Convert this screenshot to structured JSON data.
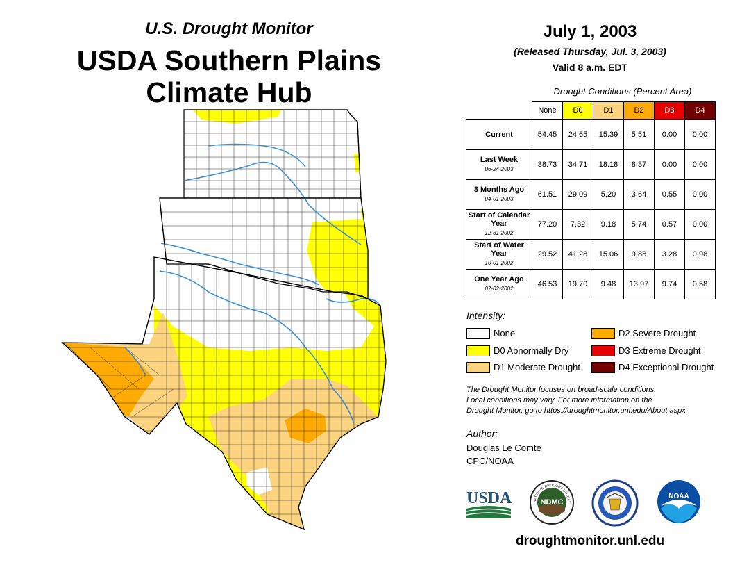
{
  "header": {
    "subtitle": "U.S. Drought Monitor",
    "title_line1": "USDA Southern Plains",
    "title_line2": "Climate Hub"
  },
  "map": {
    "regions": [
      "Kansas",
      "Oklahoma",
      "Texas"
    ]
  },
  "date_block": {
    "date": "July 1, 2003",
    "released": "(Released Thursday, Jul. 3, 2003)",
    "valid": "Valid 8 a.m. EDT"
  },
  "table": {
    "title": "Drought Conditions (Percent Area)",
    "columns": [
      {
        "label": "None",
        "color": "#ffffff",
        "text_color": "#000000"
      },
      {
        "label": "D0",
        "color": "#ffff00",
        "text_color": "#000000"
      },
      {
        "label": "D1",
        "color": "#fcd37f",
        "text_color": "#000000"
      },
      {
        "label": "D2",
        "color": "#ffaa00",
        "text_color": "#000000"
      },
      {
        "label": "D3",
        "color": "#e60000",
        "text_color": "#ffffff"
      },
      {
        "label": "D4",
        "color": "#730000",
        "text_color": "#ffffff"
      }
    ],
    "rows": [
      {
        "label": "Current",
        "date": "",
        "values": [
          "54.45",
          "24.65",
          "15.39",
          "5.51",
          "0.00",
          "0.00"
        ]
      },
      {
        "label": "Last Week",
        "date": "06-24-2003",
        "values": [
          "38.73",
          "34.71",
          "18.18",
          "8.37",
          "0.00",
          "0.00"
        ]
      },
      {
        "label": "3 Months Ago",
        "date": "04-01-2003",
        "values": [
          "61.51",
          "29.09",
          "5.20",
          "3.64",
          "0.55",
          "0.00"
        ]
      },
      {
        "label": "Start of Calendar Year",
        "date": "12-31-2002",
        "values": [
          "77.20",
          "7.32",
          "9.18",
          "5.74",
          "0.57",
          "0.00"
        ]
      },
      {
        "label": "Start of Water Year",
        "date": "10-01-2002",
        "values": [
          "29.52",
          "41.28",
          "15.06",
          "9.88",
          "3.28",
          "0.98"
        ]
      },
      {
        "label": "One Year Ago",
        "date": "07-02-2002",
        "values": [
          "46.53",
          "19.70",
          "9.48",
          "13.97",
          "9.74",
          "0.58"
        ]
      }
    ]
  },
  "legend": {
    "title": "Intensity:",
    "items": [
      {
        "label": "None",
        "color": "#ffffff"
      },
      {
        "label": "D0 Abnormally Dry",
        "color": "#ffff00"
      },
      {
        "label": "D1 Moderate Drought",
        "color": "#fcd37f"
      },
      {
        "label": "D2 Severe Drought",
        "color": "#ffaa00"
      },
      {
        "label": "D3 Extreme Drought",
        "color": "#e60000"
      },
      {
        "label": "D4 Exceptional Drought",
        "color": "#730000"
      }
    ]
  },
  "note": {
    "line1": "The Drought Monitor focuses on broad-scale conditions.",
    "line2": "Local conditions may vary. For more information on the",
    "line3": "Drought Monitor, go to https://droughtmonitor.unl.edu/About.aspx"
  },
  "author": {
    "heading": "Author:",
    "name": "Douglas Le Comte",
    "org": "CPC/NOAA"
  },
  "logos": {
    "usda": "USDA",
    "ndmc": "NDMC",
    "ndmc_ring": "NATIONAL DROUGHT MITIGATION CENTER",
    "noaa": "NOAA"
  },
  "footer": {
    "website": "droughtmonitor.unl.edu"
  }
}
